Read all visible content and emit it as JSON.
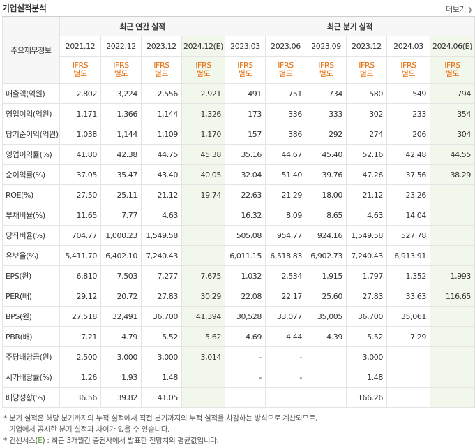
{
  "header": {
    "title": "기업실적분석",
    "more_label": "더보기"
  },
  "table": {
    "corner_label": "주요재무정보",
    "annual_group": "최근 연간 실적",
    "quarter_group": "최근 분기 실적",
    "annual_periods": [
      "2021.12",
      "2022.12",
      "2023.12",
      "2024.12(E)"
    ],
    "quarter_periods": [
      "2023.03",
      "2023.06",
      "2023.09",
      "2023.12",
      "2024.03",
      "2024.06(E)"
    ],
    "basis_line1": "IFRS",
    "basis_line2": "별도",
    "rows": [
      {
        "label": "매출액(억원)",
        "values": [
          "2,802",
          "3,224",
          "2,556",
          "2,921",
          "491",
          "751",
          "734",
          "580",
          "549",
          "794"
        ]
      },
      {
        "label": "영업이익(억원)",
        "values": [
          "1,171",
          "1,366",
          "1,144",
          "1,326",
          "173",
          "336",
          "333",
          "302",
          "233",
          "354"
        ]
      },
      {
        "label": "당기순이익(억원)",
        "values": [
          "1,038",
          "1,144",
          "1,109",
          "1,170",
          "157",
          "386",
          "292",
          "274",
          "206",
          "304"
        ]
      },
      {
        "label": "영업이익률(%)",
        "values": [
          "41.80",
          "42.38",
          "44.75",
          "45.38",
          "35.16",
          "44.67",
          "45.40",
          "52.16",
          "42.48",
          "44.55"
        ]
      },
      {
        "label": "순이익률(%)",
        "values": [
          "37.05",
          "35.47",
          "43.40",
          "40.05",
          "32.04",
          "51.40",
          "39.76",
          "47.26",
          "37.56",
          "38.29"
        ]
      },
      {
        "label": "ROE(%)",
        "values": [
          "27.50",
          "25.11",
          "21.12",
          "19.74",
          "22.63",
          "21.29",
          "18.00",
          "21.12",
          "23.26",
          ""
        ]
      },
      {
        "label": "부채비율(%)",
        "values": [
          "11.65",
          "7.77",
          "4.63",
          "",
          "16.32",
          "8.09",
          "8.65",
          "4.63",
          "14.04",
          ""
        ]
      },
      {
        "label": "당좌비율(%)",
        "values": [
          "704.77",
          "1,000.23",
          "1,549.58",
          "",
          "505.08",
          "954.77",
          "924.16",
          "1,549.58",
          "527.78",
          ""
        ]
      },
      {
        "label": "유보율(%)",
        "values": [
          "5,411.70",
          "6,402.10",
          "7,240.43",
          "",
          "6,011.15",
          "6,518.83",
          "6,902.73",
          "7,240.43",
          "6,913.91",
          ""
        ]
      },
      {
        "label": "EPS(원)",
        "values": [
          "6,810",
          "7,503",
          "7,277",
          "7,675",
          "1,032",
          "2,534",
          "1,915",
          "1,797",
          "1,352",
          "1,993"
        ]
      },
      {
        "label": "PER(배)",
        "values": [
          "29.12",
          "20.72",
          "27.83",
          "30.29",
          "22.08",
          "22.17",
          "25.60",
          "27.83",
          "33.63",
          "116.65"
        ]
      },
      {
        "label": "BPS(원)",
        "values": [
          "27,518",
          "32,491",
          "36,700",
          "41,394",
          "30,528",
          "33,077",
          "35,005",
          "36,700",
          "35,061",
          ""
        ]
      },
      {
        "label": "PBR(배)",
        "values": [
          "7.21",
          "4.79",
          "5.52",
          "5.62",
          "4.69",
          "4.44",
          "4.39",
          "5.52",
          "7.29",
          ""
        ]
      },
      {
        "label": "주당배당금(원)",
        "values": [
          "2,500",
          "3,000",
          "3,000",
          "3,014",
          "-",
          "-",
          "",
          "3,000",
          "",
          ""
        ]
      },
      {
        "label": "시가배당률(%)",
        "values": [
          "1.26",
          "1.93",
          "1.48",
          "",
          "-",
          "-",
          "",
          "1.48",
          "",
          ""
        ]
      },
      {
        "label": "배당성향(%)",
        "values": [
          "36.56",
          "39.82",
          "41.05",
          "",
          "",
          "",
          "",
          "166.26",
          "",
          ""
        ]
      }
    ]
  },
  "notes": {
    "line1": "* 분기 실적은 해당 분기까지의 누적 실적에서 직전 분기까지의 누적 실적을 차감하는 방식으로 계산되므로,",
    "line2": "기업에서 공시한 분기 실적과 차이가 있을 수 있습니다.",
    "line3_prefix": "* 컨센서스(",
    "line3_mark": "E",
    "line3_suffix": ") : 최근 3개월간 증권사에서 발표한 전망치의 평균값입니다."
  }
}
